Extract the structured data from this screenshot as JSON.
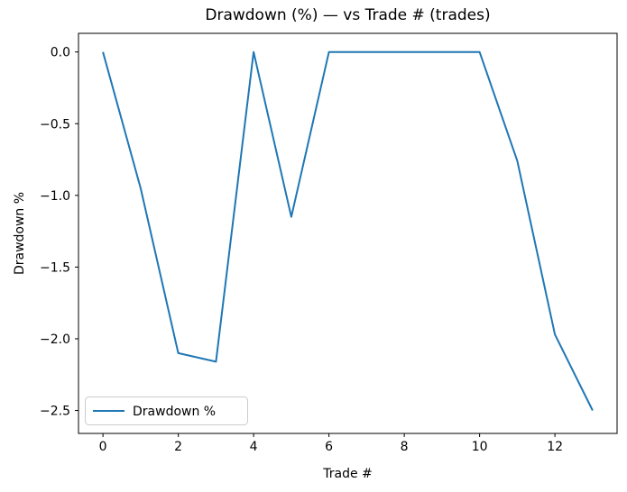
{
  "chart_data": {
    "type": "line",
    "title": "Drawdown (%) — vs Trade # (trades)",
    "xlabel": "Trade #",
    "ylabel": "Drawdown %",
    "x": [
      0,
      1,
      2,
      3,
      4,
      5,
      6,
      7,
      8,
      9,
      10,
      11,
      12,
      13
    ],
    "series": [
      {
        "name": "Drawdown %",
        "color": "#1f77b4",
        "values": [
          0.0,
          -0.95,
          -2.1,
          -2.16,
          0.0,
          -1.15,
          0.0,
          0.0,
          0.0,
          0.0,
          0.0,
          -0.76,
          -1.97,
          -2.5
        ]
      }
    ],
    "xlim": [
      -0.65,
      13.65
    ],
    "ylim": [
      -2.66,
      0.13
    ],
    "xticks": [
      0,
      2,
      4,
      6,
      8,
      10,
      12
    ],
    "xtick_labels": [
      "0",
      "2",
      "4",
      "6",
      "8",
      "10",
      "12"
    ],
    "yticks": [
      0.0,
      -0.5,
      -1.0,
      -1.5,
      -2.0,
      -2.5
    ],
    "ytick_labels": [
      "0.0",
      "−0.5",
      "−1.0",
      "−1.5",
      "−2.0",
      "−2.5"
    ],
    "grid": false,
    "legend": {
      "position": "lower left",
      "entries": [
        "Drawdown %"
      ]
    },
    "axes_color": "#000000",
    "background": "#ffffff"
  }
}
